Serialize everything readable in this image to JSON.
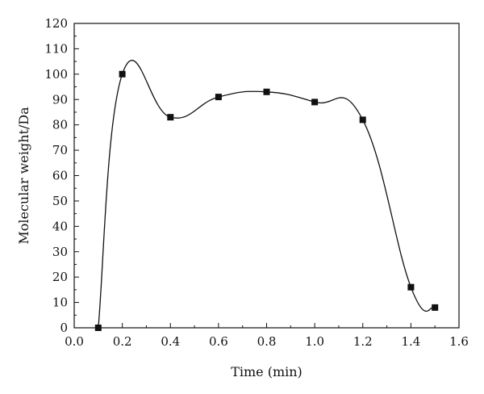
{
  "chart_data": {
    "type": "line",
    "xlabel": "Time (min)",
    "ylabel": "Molecular weight/Da",
    "xlim": [
      0.0,
      1.6
    ],
    "ylim": [
      0,
      120
    ],
    "x_ticks": [
      "0.0",
      "0.2",
      "0.4",
      "0.6",
      "0.8",
      "1.0",
      "1.2",
      "1.4",
      "1.6"
    ],
    "y_ticks": [
      "0",
      "10",
      "20",
      "30",
      "40",
      "50",
      "60",
      "70",
      "80",
      "90",
      "100",
      "110",
      "120"
    ],
    "grid": false,
    "marker": "square",
    "smooth": true,
    "series": [
      {
        "x": [
          0.1,
          0.2,
          0.4,
          0.6,
          0.8,
          1.0,
          1.2,
          1.4,
          1.5
        ],
        "y": [
          0,
          100,
          83,
          91,
          93,
          89,
          82,
          16,
          8
        ]
      }
    ]
  }
}
